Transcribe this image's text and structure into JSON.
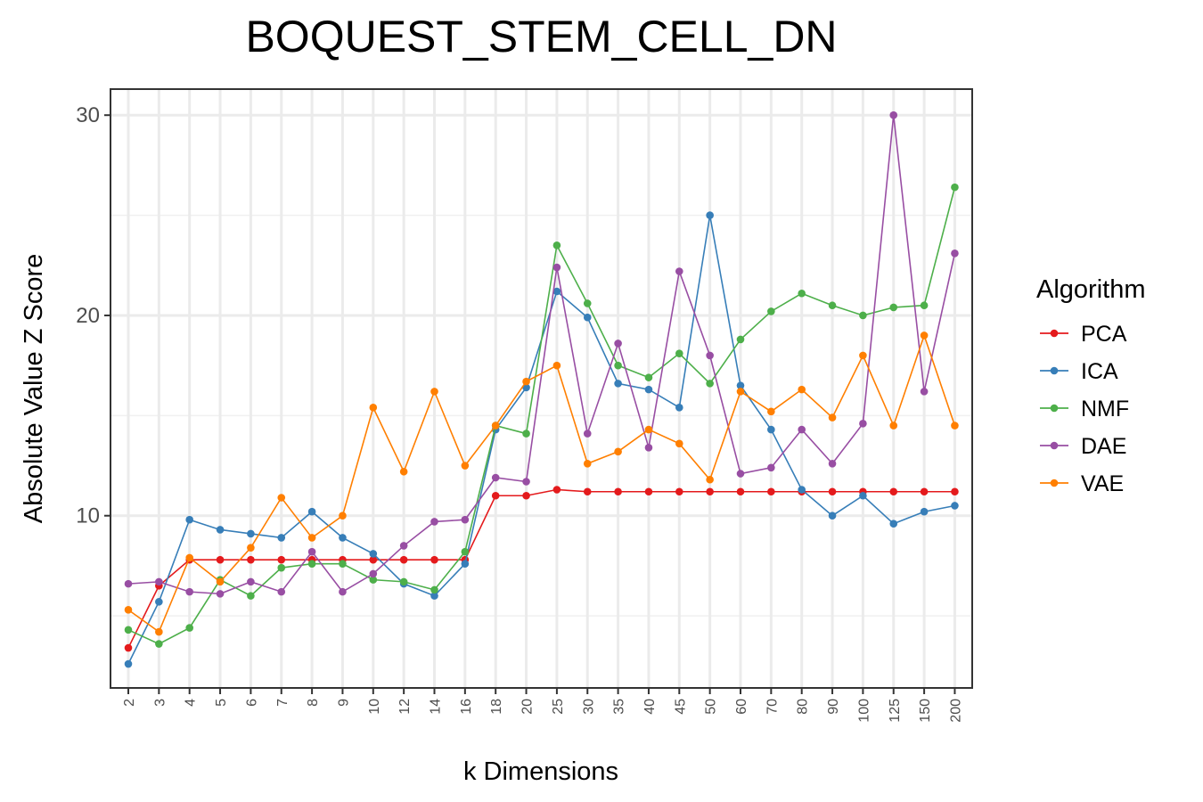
{
  "chart_data": {
    "type": "line",
    "title": "BOQUEST_STEM_CELL_DN",
    "xlabel": "k Dimensions",
    "ylabel": "Absolute Value Z Score",
    "categories": [
      "2",
      "3",
      "4",
      "5",
      "6",
      "7",
      "8",
      "9",
      "10",
      "12",
      "14",
      "16",
      "18",
      "20",
      "25",
      "30",
      "35",
      "40",
      "45",
      "50",
      "60",
      "70",
      "80",
      "90",
      "100",
      "125",
      "150",
      "200"
    ],
    "ylim": [
      1.4,
      31.3
    ],
    "yticks": [
      10,
      20,
      30
    ],
    "grid": true,
    "legend_title": "Algorithm",
    "legend_position": "right",
    "series": [
      {
        "name": "PCA",
        "color": "#E41A1C",
        "values": [
          3.4,
          6.5,
          7.8,
          7.8,
          7.8,
          7.8,
          7.8,
          7.8,
          7.8,
          7.8,
          7.8,
          7.8,
          11.0,
          11.0,
          11.3,
          11.2,
          11.2,
          11.2,
          11.2,
          11.2,
          11.2,
          11.2,
          11.2,
          11.2,
          11.2,
          11.2,
          11.2,
          11.2
        ]
      },
      {
        "name": "ICA",
        "color": "#377EB8",
        "values": [
          2.6,
          5.7,
          9.8,
          9.3,
          9.1,
          8.9,
          10.2,
          8.9,
          8.1,
          6.6,
          6.0,
          7.6,
          14.3,
          16.4,
          21.2,
          19.9,
          16.6,
          16.3,
          15.4,
          25.0,
          16.5,
          14.3,
          11.3,
          10.0,
          11.0,
          9.6,
          10.2,
          10.5
        ]
      },
      {
        "name": "NMF",
        "color": "#4DAF4A",
        "values": [
          4.3,
          3.6,
          4.4,
          6.8,
          6.0,
          7.4,
          7.6,
          7.6,
          6.8,
          6.7,
          6.3,
          8.2,
          14.5,
          14.1,
          23.5,
          20.6,
          17.5,
          16.9,
          18.1,
          16.6,
          18.8,
          20.2,
          21.1,
          20.5,
          20.0,
          20.4,
          20.5,
          26.4
        ]
      },
      {
        "name": "DAE",
        "color": "#984EA3",
        "values": [
          6.6,
          6.7,
          6.2,
          6.1,
          6.7,
          6.2,
          8.2,
          6.2,
          7.1,
          8.5,
          9.7,
          9.8,
          11.9,
          11.7,
          22.4,
          14.1,
          18.6,
          13.4,
          22.2,
          18.0,
          12.1,
          12.4,
          14.3,
          12.6,
          14.6,
          30.0,
          16.2,
          23.1
        ]
      },
      {
        "name": "VAE",
        "color": "#FF7F00",
        "values": [
          5.3,
          4.2,
          7.9,
          6.7,
          8.4,
          10.9,
          8.9,
          10.0,
          15.4,
          12.2,
          16.2,
          12.5,
          14.5,
          16.7,
          17.5,
          12.6,
          13.2,
          14.3,
          13.6,
          11.8,
          16.2,
          15.2,
          16.3,
          14.9,
          18.0,
          14.5,
          19.0,
          14.5
        ]
      }
    ]
  }
}
